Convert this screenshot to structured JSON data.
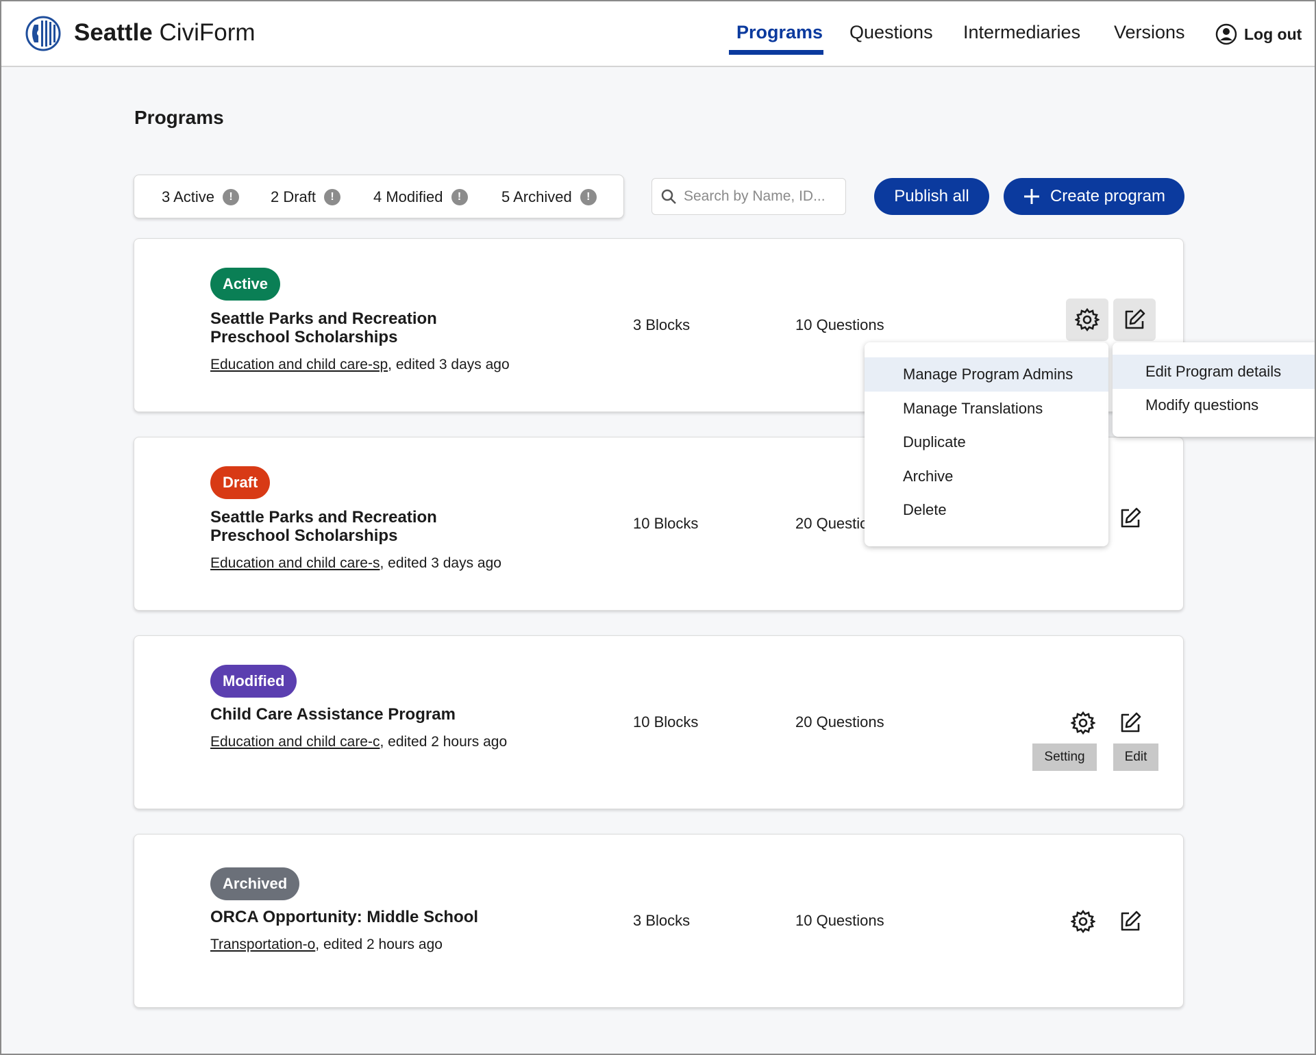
{
  "header": {
    "brand_bold": "Seattle",
    "brand_rest": "CiviForm",
    "nav": [
      "Programs",
      "Questions",
      "Intermediaries",
      "Versions"
    ],
    "logout": "Log out"
  },
  "page_title": "Programs",
  "filters": [
    {
      "label": "3 Active",
      "icon": "!"
    },
    {
      "label": "2 Draft",
      "icon": "!"
    },
    {
      "label": "4 Modified",
      "icon": "!"
    },
    {
      "label": "5 Archived",
      "icon": "!"
    }
  ],
  "search": {
    "placeholder": "Search by Name, ID..."
  },
  "buttons": {
    "publish_all": "Publish all",
    "create_program": "Create program",
    "create_icon": "plus-icon"
  },
  "status_colors": {
    "active": "#0a7f55",
    "draft": "#d83a15",
    "modified": "#5b3fb0",
    "archived": "#6b7079"
  },
  "programs": [
    {
      "status": "Active",
      "name_line1": "Seattle Parks and Recreation",
      "name_line2": "Preschool Scholarships",
      "category": "Education and child care-sp",
      "edited": ", edited 3 days ago",
      "blocks": "3 Blocks",
      "questions": "10 Questions"
    },
    {
      "status": "Draft",
      "name_line1": "Seattle Parks and Recreation",
      "name_line2": "Preschool Scholarships",
      "category": "Education and child care-s",
      "edited": ", edited 3 days ago",
      "blocks": "10 Blocks",
      "questions": "20 Questio"
    },
    {
      "status": "Modified",
      "name_line1": "Child Care Assistance Program",
      "name_line2": "",
      "category": "Education and child care-c",
      "edited": ", edited 2 hours ago",
      "blocks": "10 Blocks",
      "questions": "20 Questions",
      "tooltip_setting": "Setting",
      "tooltip_edit": "Edit"
    },
    {
      "status": "Archived",
      "name_line1": "ORCA Opportunity: Middle School",
      "name_line2": "",
      "category": "Transportation-o",
      "edited": ", edited 2 hours ago",
      "blocks": "3 Blocks",
      "questions": "10 Questions"
    }
  ],
  "settings_menu": [
    "Manage Program Admins",
    "Manage Translations",
    "Duplicate",
    "Archive",
    "Delete"
  ],
  "edit_menu": [
    "Edit Program details",
    "Modify questions"
  ]
}
